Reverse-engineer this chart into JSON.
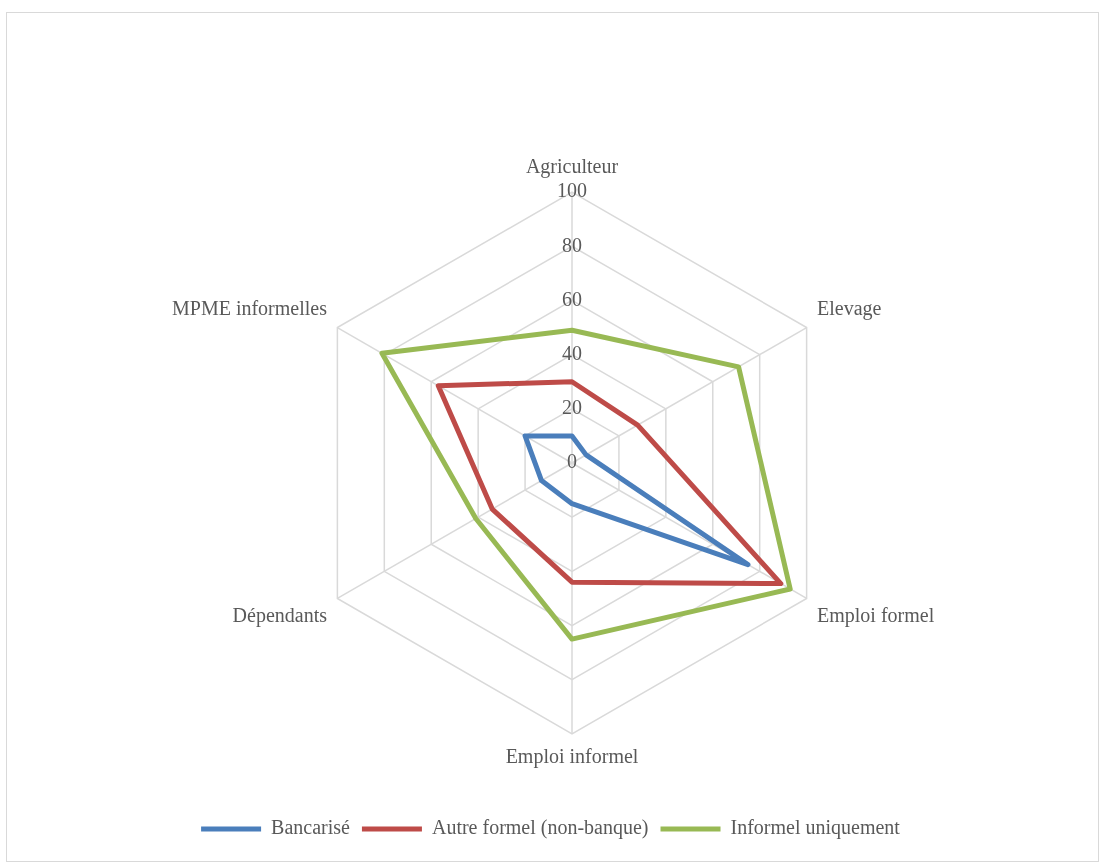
{
  "chart_data": {
    "type": "radar",
    "categories": [
      "Agriculteur",
      "Elevage",
      "Emploi formel",
      "Emploi informel",
      "Dépendants",
      "MPME informelles"
    ],
    "series": [
      {
        "name": "Bancarisé",
        "color": "#4a7ebb",
        "values": [
          10,
          6,
          75,
          15,
          13,
          20
        ]
      },
      {
        "name": "Autre formel (non-banque)",
        "color": "#be4b48",
        "values": [
          30,
          28,
          89,
          44,
          34,
          57
        ]
      },
      {
        "name": "Informel uniquement",
        "color": "#98b954",
        "values": [
          49,
          71,
          93,
          65,
          41,
          81
        ]
      }
    ],
    "ylim": [
      0,
      100
    ],
    "yticks": [
      0,
      20,
      40,
      60,
      80,
      100
    ],
    "grid": true,
    "legend": "bottom",
    "marker": "none"
  }
}
